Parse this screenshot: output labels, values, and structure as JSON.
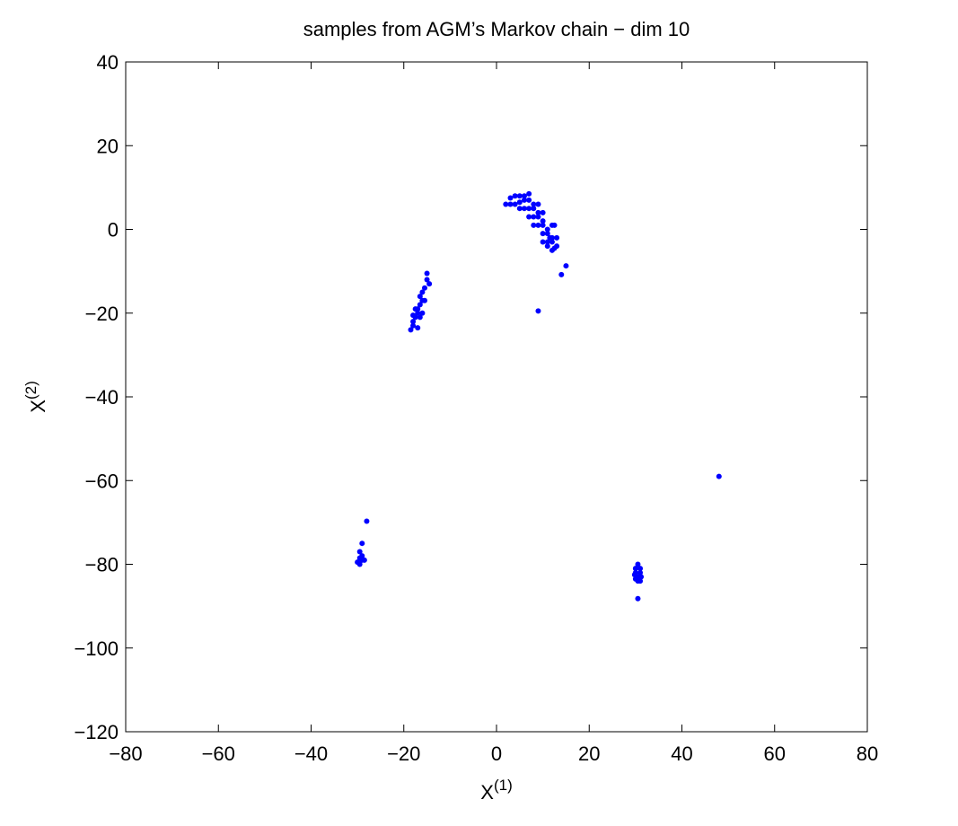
{
  "chart_data": {
    "type": "scatter",
    "title": "samples from AGM’s Markov chain − dim 10",
    "xlabel": "X",
    "xlabel_superscript": "(1)",
    "ylabel": "X",
    "ylabel_superscript": "(2)",
    "color": "#0000ff",
    "xlim": [
      -80,
      80
    ],
    "ylim": [
      -120,
      40
    ],
    "xticks": [
      {
        "value": -80,
        "label": "−80"
      },
      {
        "value": -60,
        "label": "−60"
      },
      {
        "value": -40,
        "label": "−40"
      },
      {
        "value": -20,
        "label": "−20"
      },
      0,
      20,
      40,
      60,
      80
    ],
    "yticks": [
      {
        "value": -120,
        "label": "−120"
      },
      {
        "value": -100,
        "label": "−100"
      },
      {
        "value": -80,
        "label": "−80"
      },
      {
        "value": -60,
        "label": "−60"
      },
      {
        "value": -40,
        "label": "−40"
      },
      {
        "value": -20,
        "label": "−20"
      },
      0,
      20,
      40
    ],
    "x": [
      2,
      3,
      4,
      5,
      6,
      7,
      4,
      5,
      6,
      7,
      8,
      6,
      7,
      8,
      9,
      8,
      9,
      10,
      9,
      10,
      11,
      10,
      11,
      12,
      11,
      12,
      13,
      12,
      13,
      12,
      10,
      9,
      7,
      8,
      10,
      11,
      3,
      5,
      12.5,
      11.5,
      -15,
      -15,
      -14.5,
      -15.5,
      -16,
      -16,
      -16.5,
      -17,
      -17,
      -17.5,
      -18,
      -18,
      -18.5,
      -17,
      -16.5,
      -16,
      -15.5,
      -17.5,
      -18,
      -16.5,
      -28,
      -29,
      -29.5,
      -29.5,
      -29,
      -30,
      -28.5,
      -29.5,
      -29,
      30.5,
      30,
      31,
      30,
      31,
      30.5,
      30,
      31,
      30.5,
      29.8,
      31.2,
      30.5,
      48,
      9,
      15,
      14,
      12.5
    ],
    "y": [
      6,
      7.5,
      8,
      8,
      8,
      8.5,
      6,
      6.5,
      7,
      7,
      6,
      5,
      5,
      5,
      4,
      3,
      3,
      2,
      1,
      1,
      0,
      -1,
      -1,
      -2,
      -3,
      -3,
      -4,
      -5,
      -2,
      1,
      4,
      6,
      3,
      1,
      -3,
      -4,
      6,
      5,
      -4.5,
      -2,
      -10.5,
      -12,
      -13,
      -14,
      -15,
      -17,
      -18,
      -19,
      -20,
      -21,
      -22,
      -23,
      -24,
      -23.5,
      -21,
      -20,
      -17,
      -19,
      -20.5,
      -16,
      -69.7,
      -75,
      -77,
      -78.5,
      -79,
      -79.5,
      -79,
      -80,
      -78,
      -80,
      -81,
      -81,
      -82,
      -82,
      -83,
      -83.5,
      -84,
      -84,
      -82.5,
      -83,
      -88.2,
      -59,
      -19.5,
      -8.7,
      -10.8,
      1
    ]
  }
}
